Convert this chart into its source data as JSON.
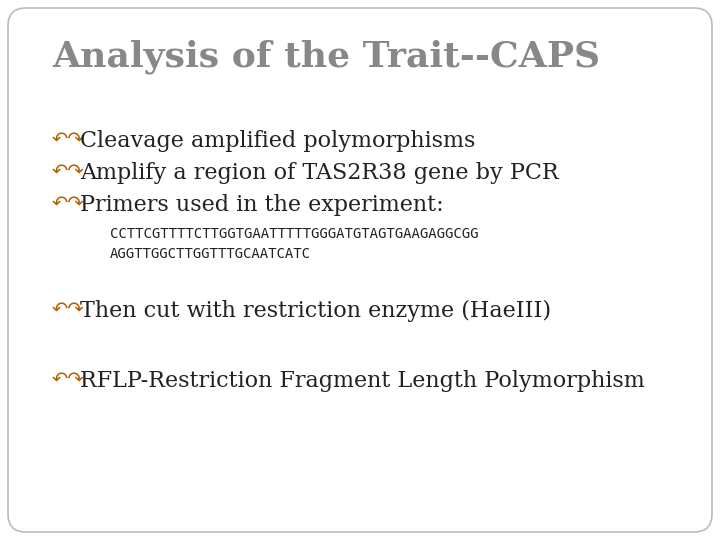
{
  "title": "Analysis of the Trait--CAPS",
  "title_color": "#888888",
  "title_fontsize": 26,
  "bullet_color": "#b85c00",
  "bullet_fontsize": 16,
  "body_color": "#222222",
  "body_fontsize": 16,
  "bullets": [
    "Cleavage amplified polymorphisms",
    "Amplify a region of TAS2R38 gene by PCR",
    "Primers used in the experiment:"
  ],
  "code_lines": [
    "CCTTCGTTTTCTTGGTGAATTTTTGGGATGTAGTGAAGAGGCGG",
    "AGGTTGGCTTGGTTTGCAATCATC"
  ],
  "code_fontsize": 10,
  "code_color": "#222222",
  "extra_bullets": [
    "Then cut with restriction enzyme (HaeIII)",
    "RFLP-Restriction Fragment Length Polymorphism"
  ],
  "background_color": "#ffffff",
  "border_color": "#bbbbbb"
}
